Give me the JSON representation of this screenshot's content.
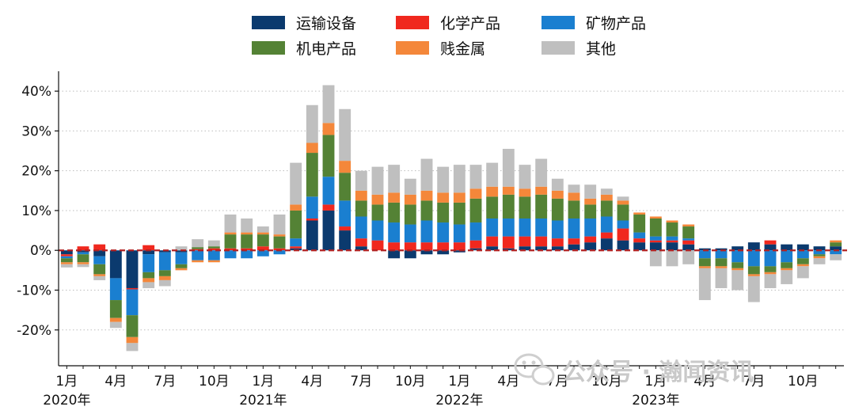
{
  "watermark": "公众号 · 瀚闻资讯",
  "chart_data": {
    "type": "bar",
    "stacked": true,
    "ylim": [
      -0.29,
      0.45
    ],
    "yticks": [
      -0.2,
      -0.1,
      0,
      0.1,
      0.2,
      0.3,
      0.4
    ],
    "ytick_labels": [
      "-20%",
      "-10%",
      "0%",
      "10%",
      "20%",
      "30%",
      "40%"
    ],
    "grid": "horizontal-dotted",
    "zero_line": {
      "style": "dashed",
      "color": "#b22222"
    },
    "legend": {
      "placement": "top",
      "columns": 3
    },
    "categories": [
      "2020-01",
      "2020-02",
      "2020-03",
      "2020-04",
      "2020-05",
      "2020-06",
      "2020-07",
      "2020-08",
      "2020-09",
      "2020-10",
      "2020-11",
      "2020-12",
      "2021-01",
      "2021-02",
      "2021-03",
      "2021-04",
      "2021-05",
      "2021-06",
      "2021-07",
      "2021-08",
      "2021-09",
      "2021-10",
      "2021-11",
      "2021-12",
      "2022-01",
      "2022-02",
      "2022-03",
      "2022-04",
      "2022-05",
      "2022-06",
      "2022-07",
      "2022-08",
      "2022-09",
      "2022-10",
      "2022-11",
      "2022-12",
      "2023-01",
      "2023-02",
      "2023-03",
      "2023-04",
      "2023-05",
      "2023-06",
      "2023-07",
      "2023-08",
      "2023-09",
      "2023-10",
      "2023-11",
      "2023-12"
    ],
    "xtick_labels": [
      {
        "index": 0,
        "label": "1月"
      },
      {
        "index": 3,
        "label": "4月"
      },
      {
        "index": 6,
        "label": "7月"
      },
      {
        "index": 9,
        "label": "10月"
      },
      {
        "index": 12,
        "label": "1月"
      },
      {
        "index": 15,
        "label": "4月"
      },
      {
        "index": 18,
        "label": "7月"
      },
      {
        "index": 21,
        "label": "10月"
      },
      {
        "index": 24,
        "label": "1月"
      },
      {
        "index": 27,
        "label": "4月"
      },
      {
        "index": 30,
        "label": "7月"
      },
      {
        "index": 33,
        "label": "10月"
      },
      {
        "index": 36,
        "label": "1月"
      },
      {
        "index": 39,
        "label": "4月"
      },
      {
        "index": 42,
        "label": "7月"
      },
      {
        "index": 45,
        "label": "10月"
      }
    ],
    "year_labels": [
      {
        "index": 0,
        "label": "2020年"
      },
      {
        "index": 12,
        "label": "2021年"
      },
      {
        "index": 24,
        "label": "2022年"
      },
      {
        "index": 36,
        "label": "2023年"
      }
    ],
    "series": [
      {
        "name": "运输设备",
        "color": "#0b3a6e",
        "values": [
          -0.01,
          -0.005,
          -0.015,
          -0.07,
          -0.095,
          -0.01,
          -0.005,
          -0.005,
          0,
          0,
          0,
          0,
          0,
          0,
          0.005,
          0.075,
          0.1,
          0.05,
          0.01,
          0,
          -0.02,
          -0.02,
          -0.01,
          -0.01,
          -0.005,
          0.005,
          0.01,
          0.005,
          0.01,
          0.01,
          0.01,
          0.015,
          0.02,
          0.03,
          0.025,
          0.02,
          0.02,
          0.02,
          0.015,
          0.005,
          0.005,
          0.01,
          0.02,
          0.015,
          0.015,
          0.015,
          0.01,
          0.01
        ]
      },
      {
        "name": "化学产品",
        "color": "#f0281e",
        "values": [
          -0.005,
          0.01,
          0.015,
          0,
          -0.003,
          0.013,
          0,
          0,
          0.003,
          0.005,
          0.005,
          0.005,
          0.01,
          0.005,
          0.005,
          0.005,
          0.015,
          0.01,
          0.02,
          0.025,
          0.02,
          0.02,
          0.02,
          0.02,
          0.02,
          0.02,
          0.025,
          0.03,
          0.025,
          0.025,
          0.02,
          0.015,
          0.015,
          0.015,
          0.03,
          0.01,
          0.005,
          0.005,
          0.01,
          0,
          0,
          0,
          0,
          0.01,
          0,
          0,
          0,
          0
        ]
      },
      {
        "name": "矿物产品",
        "color": "#1a7fd0",
        "values": [
          -0.005,
          -0.005,
          -0.02,
          -0.055,
          -0.065,
          -0.045,
          -0.045,
          -0.03,
          -0.025,
          -0.025,
          -0.02,
          -0.02,
          -0.015,
          -0.01,
          0.02,
          0.055,
          0.07,
          0.065,
          0.055,
          0.05,
          0.05,
          0.045,
          0.055,
          0.05,
          0.045,
          0.045,
          0.045,
          0.045,
          0.045,
          0.045,
          0.045,
          0.05,
          0.045,
          0.04,
          0.02,
          0.015,
          0.01,
          0.01,
          0.005,
          -0.02,
          -0.02,
          -0.03,
          -0.04,
          -0.04,
          -0.03,
          -0.02,
          -0.01,
          -0.01
        ]
      },
      {
        "name": "机电产品",
        "color": "#548235",
        "values": [
          -0.01,
          -0.02,
          -0.025,
          -0.045,
          -0.055,
          -0.015,
          -0.015,
          -0.01,
          0.005,
          0.005,
          0.035,
          0.035,
          0.03,
          0.03,
          0.07,
          0.11,
          0.105,
          0.07,
          0.04,
          0.04,
          0.05,
          0.05,
          0.05,
          0.05,
          0.055,
          0.06,
          0.055,
          0.06,
          0.055,
          0.06,
          0.055,
          0.045,
          0.035,
          0.04,
          0.04,
          0.045,
          0.045,
          0.035,
          0.03,
          -0.02,
          -0.02,
          -0.015,
          -0.02,
          -0.015,
          -0.015,
          -0.015,
          -0.005,
          0.01
        ]
      },
      {
        "name": "贱金属",
        "color": "#f4873a",
        "values": [
          -0.005,
          -0.005,
          -0.005,
          -0.01,
          -0.015,
          -0.01,
          -0.01,
          -0.005,
          -0.005,
          -0.005,
          0.005,
          0.005,
          0.005,
          0.005,
          0.015,
          0.025,
          0.03,
          0.03,
          0.025,
          0.025,
          0.025,
          0.025,
          0.025,
          0.025,
          0.025,
          0.025,
          0.025,
          0.02,
          0.02,
          0.02,
          0.02,
          0.02,
          0.015,
          0.015,
          0.01,
          0.005,
          0.005,
          0.005,
          0.005,
          -0.005,
          -0.005,
          -0.005,
          -0.005,
          -0.005,
          -0.005,
          -0.005,
          -0.005,
          0.005
        ]
      },
      {
        "name": "其他",
        "color": "#bfbfbf",
        "values": [
          -0.008,
          -0.007,
          -0.01,
          -0.015,
          -0.02,
          -0.015,
          -0.015,
          0.01,
          0.02,
          0.015,
          0.045,
          0.035,
          0.015,
          0.05,
          0.105,
          0.095,
          0.095,
          0.13,
          0.05,
          0.07,
          0.07,
          0.04,
          0.08,
          0.065,
          0.07,
          0.06,
          0.06,
          0.095,
          0.06,
          0.07,
          0.03,
          0.02,
          0.035,
          0.015,
          0.01,
          0,
          -0.04,
          -0.04,
          -0.035,
          -0.08,
          -0.05,
          -0.05,
          -0.065,
          -0.035,
          -0.035,
          -0.03,
          -0.015,
          -0.015
        ]
      }
    ]
  }
}
